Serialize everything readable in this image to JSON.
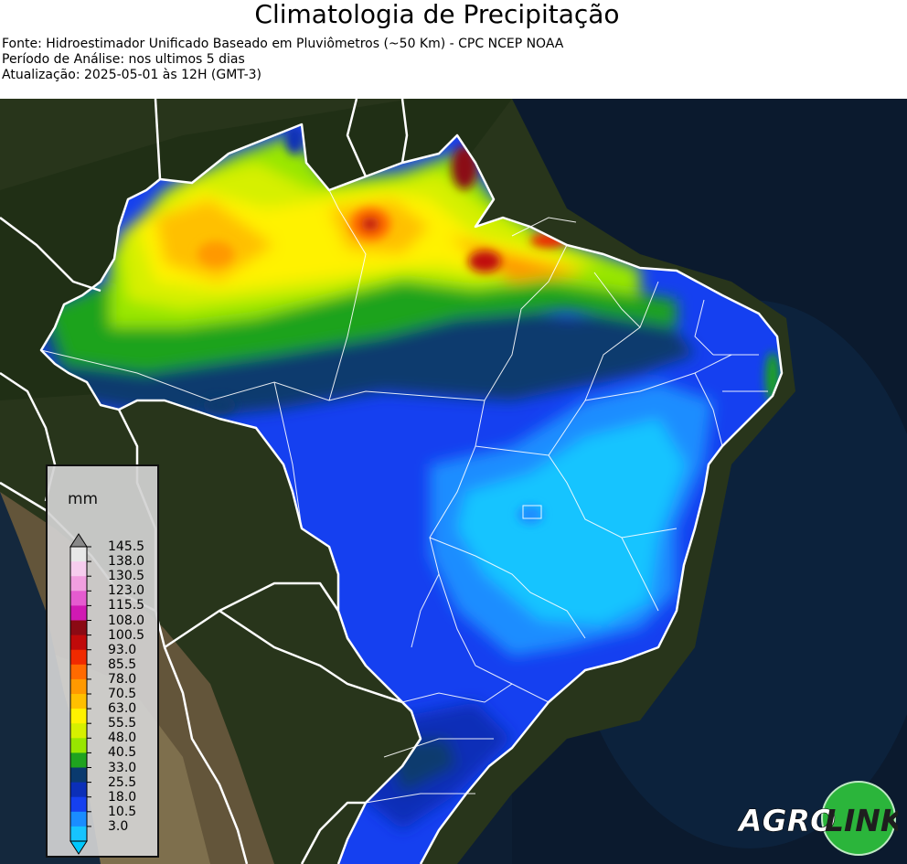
{
  "header": {
    "title": "Climatologia de Precipitação",
    "source": "Fonte: Hidroestimador Unificado Baseado em Pluviômetros (~50 Km) - CPC NCEP NOAA",
    "period": "Período de Análise: nos ultimos 5 dias",
    "update": "Atualização: 2025-05-01 às 12H (GMT-3)"
  },
  "legend": {
    "unit": "mm",
    "ticks": [
      "145.5",
      "138.0",
      "130.5",
      "123.0",
      "115.5",
      "108.0",
      "100.5",
      "93.0",
      "85.5",
      "78.0",
      "70.5",
      "63.0",
      "55.5",
      "48.0",
      "40.5",
      "33.0",
      "25.5",
      "18.0",
      "10.5",
      "3.0"
    ],
    "colors": [
      "#e8e8e8",
      "#f6cdee",
      "#f19fe0",
      "#e55bd0",
      "#d019b3",
      "#8b0a14",
      "#c00a0a",
      "#f02a00",
      "#ff6a00",
      "#ff9900",
      "#ffc000",
      "#fff200",
      "#d6f000",
      "#98e600",
      "#1fa31f",
      "#0a3a6e",
      "#0b2fb8",
      "#1540f0",
      "#1a8dff",
      "#16c4ff"
    ],
    "top_arrow_color": "#888888",
    "bottom_arrow_color": "#00c8ff"
  },
  "logo": {
    "text_left": "AGRO",
    "text_right": "LINK",
    "green": "#2bb53b"
  }
}
